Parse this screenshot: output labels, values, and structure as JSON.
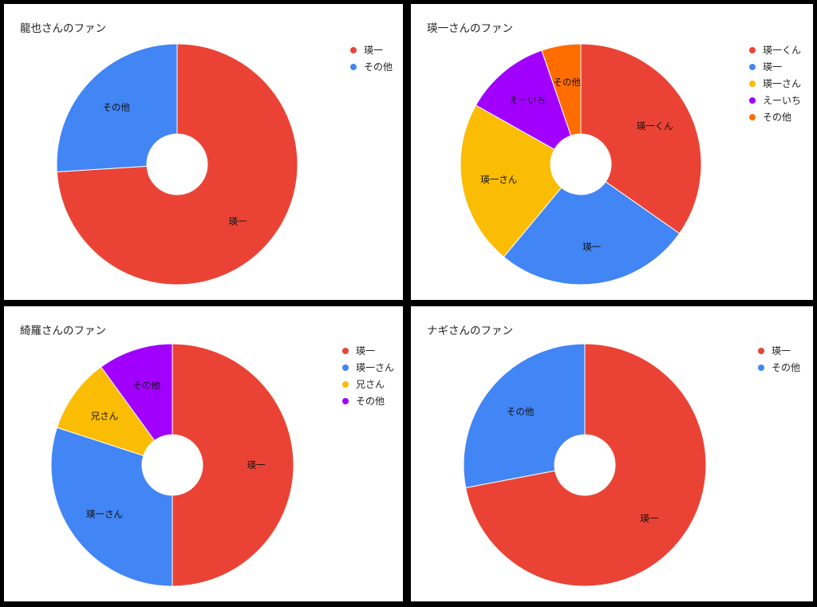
{
  "chart_data": [
    {
      "type": "pie",
      "title": "龍也さんのファン",
      "legend_position": "right",
      "categories": [
        "瑛一",
        "その他"
      ],
      "values": [
        74,
        26
      ],
      "colors": [
        "#ea4335",
        "#4285f4"
      ]
    },
    {
      "type": "pie",
      "title": "瑛一さんのファン",
      "legend_position": "right",
      "categories": [
        "瑛一くん",
        "瑛一",
        "瑛一さん",
        "えーいち",
        "その他"
      ],
      "values": [
        33,
        25,
        21,
        11,
        5
      ],
      "colors": [
        "#ea4335",
        "#4285f4",
        "#fbbc04",
        "#a100ff",
        "#ff6d01"
      ]
    },
    {
      "type": "pie",
      "title": "綺羅さんのファン",
      "legend_position": "right",
      "categories": [
        "瑛一",
        "瑛一さん",
        "兄さん",
        "その他"
      ],
      "values": [
        50,
        30,
        10,
        10
      ],
      "colors": [
        "#ea4335",
        "#4285f4",
        "#fbbc04",
        "#a100ff"
      ]
    },
    {
      "type": "pie",
      "title": "ナギさんのファン",
      "legend_position": "right",
      "categories": [
        "瑛一",
        "その他"
      ],
      "values": [
        72,
        28
      ],
      "colors": [
        "#ea4335",
        "#4285f4"
      ]
    }
  ]
}
